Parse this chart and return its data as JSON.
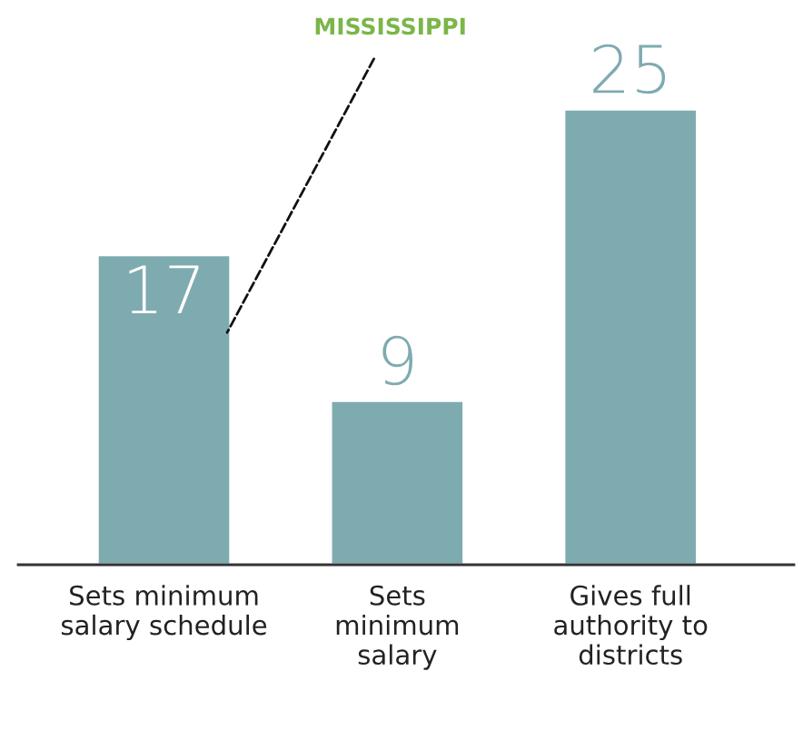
{
  "chart_data": {
    "type": "bar",
    "categories": [
      "Sets minimum\nsalary schedule",
      "Sets\nminimum\nsalary",
      "Gives full\nauthority to\ndistricts"
    ],
    "values": [
      17,
      9,
      25
    ],
    "color": "#7eabb0",
    "data_labels": true,
    "annotations": [
      "MISSISSIPPI"
    ]
  }
}
